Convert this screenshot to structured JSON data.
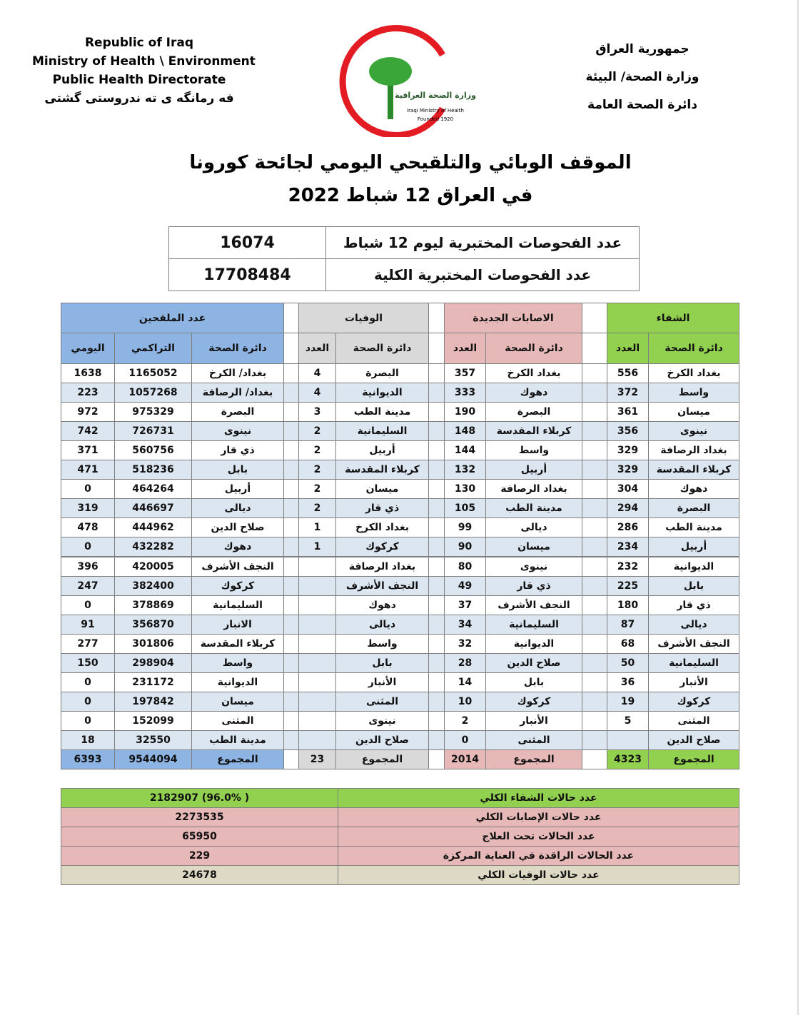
{
  "header": {
    "left": [
      "Republic of Iraq",
      "Ministry of Health \\ Environment",
      "Public Health Directorate",
      "فه رمانگه ی ته ندروستی گشتی"
    ],
    "right": [
      "جمهورية العراق",
      "وزارة الصحة/ البيئة",
      "دائرة الصحة العامة"
    ],
    "logo": [
      "وزارة الصحة العراقية",
      "Iraqi Ministry of Health",
      "Founded 1920"
    ]
  },
  "title": [
    "الموقف الوبائي والتلقيحي اليومي لجائحة كورونا",
    "في العراق  12  شباط 2022"
  ],
  "tests": {
    "rows": [
      [
        "عدد الفحوصات المختبرية  ليوم  12  شباط",
        16074
      ],
      [
        "عدد الفحوصات المختبرية الكلية",
        17708484
      ]
    ]
  },
  "sections": [
    {
      "title": "الشفاء",
      "columns": [
        "دائرة الصحة",
        "العدد"
      ],
      "rows": [
        [
          "بغداد الكرخ",
          556
        ],
        [
          "واسط",
          372
        ],
        [
          "ميسان",
          361
        ],
        [
          "نينوى",
          356
        ],
        [
          "بغداد الرصافة",
          329
        ],
        [
          "كربلاء المقدسة",
          329
        ],
        [
          "دهوك",
          304
        ],
        [
          "البصرة",
          294
        ],
        [
          "مدينة الطب",
          286
        ],
        [
          "أربيل",
          234
        ],
        [
          "الديوانية",
          232
        ],
        [
          "بابل",
          225
        ],
        [
          "ذي قار",
          180
        ],
        [
          "ديالى",
          87
        ],
        [
          "النجف الأشرف",
          68
        ],
        [
          "السليمانية",
          50
        ],
        [
          "الأنبار",
          36
        ],
        [
          "كركوك",
          19
        ],
        [
          "المثنى",
          5
        ],
        [
          "صلاح الدين",
          null
        ]
      ],
      "total": [
        "المجموع",
        4323
      ]
    },
    {
      "title": "الاصابات الجديدة",
      "columns": [
        "دائرة الصحة",
        "العدد"
      ],
      "rows": [
        [
          "بغداد الكرخ",
          357
        ],
        [
          "دهوك",
          333
        ],
        [
          "البصرة",
          190
        ],
        [
          "كربلاء المقدسة",
          148
        ],
        [
          "واسط",
          144
        ],
        [
          "أربيل",
          132
        ],
        [
          "بغداد الرصافة",
          130
        ],
        [
          "مدينة الطب",
          105
        ],
        [
          "ديالى",
          99
        ],
        [
          "ميسان",
          90
        ],
        [
          "نينوى",
          80
        ],
        [
          "ذي قار",
          49
        ],
        [
          "النجف الأشرف",
          37
        ],
        [
          "السليمانية",
          34
        ],
        [
          "الديوانية",
          32
        ],
        [
          "صلاح الدين",
          28
        ],
        [
          "بابل",
          14
        ],
        [
          "كركوك",
          10
        ],
        [
          "الأنبار",
          2
        ],
        [
          "المثنى",
          0
        ]
      ],
      "total": [
        "المجموع",
        2014
      ]
    },
    {
      "title": "الوفيات",
      "columns": [
        "دائرة الصحة",
        "العدد"
      ],
      "rows": [
        [
          "البصرة",
          4
        ],
        [
          "الديوانية",
          4
        ],
        [
          "مدينة الطب",
          3
        ],
        [
          "السليمانية",
          2
        ],
        [
          "أربيل",
          2
        ],
        [
          "كربلاء المقدسة",
          2
        ],
        [
          "ميسان",
          2
        ],
        [
          "ذي قار",
          2
        ],
        [
          "بغداد الكرخ",
          1
        ],
        [
          "كركوك",
          1
        ],
        [
          "بغداد الرصافة",
          null
        ],
        [
          "النجف الأشرف",
          null
        ],
        [
          "دهوك",
          null
        ],
        [
          "ديالى",
          null
        ],
        [
          "واسط",
          null
        ],
        [
          "بابل",
          null
        ],
        [
          "الأنبار",
          null
        ],
        [
          "المثنى",
          null
        ],
        [
          "نينوى",
          null
        ],
        [
          "صلاح الدين",
          null
        ]
      ],
      "total": [
        "المجموع",
        23
      ]
    },
    {
      "title": "عدد الملقحين",
      "columns": [
        "دائرة الصحة",
        "التراكمي",
        "اليومي"
      ],
      "rows": [
        [
          "بغداد/ الكرخ",
          1165052,
          1638
        ],
        [
          "بغداد/ الرصافة",
          1057268,
          223
        ],
        [
          "البصرة",
          975329,
          972
        ],
        [
          "نينوى",
          726731,
          742
        ],
        [
          "ذي قار",
          560756,
          371
        ],
        [
          "بابل",
          518236,
          471
        ],
        [
          "أربيل",
          464264,
          0
        ],
        [
          "ديالى",
          446697,
          319
        ],
        [
          "صلاح الدين",
          444962,
          478
        ],
        [
          "دهوك",
          432282,
          0
        ],
        [
          "النجف الأشرف",
          420005,
          396
        ],
        [
          "كركوك",
          382400,
          247
        ],
        [
          "السليمانية",
          378869,
          0
        ],
        [
          "الانبار",
          356870,
          91
        ],
        [
          "كربلاء المقدسة",
          301806,
          277
        ],
        [
          "واسط",
          298904,
          150
        ],
        [
          "الديوانية",
          231172,
          0
        ],
        [
          "ميسان",
          197842,
          0
        ],
        [
          "المثنى",
          152099,
          0
        ],
        [
          "مدينة الطب",
          32550,
          18
        ]
      ],
      "total": [
        "المجموع",
        9544094,
        6393
      ]
    }
  ],
  "summary": {
    "rows": [
      [
        "عدد حالات الشفاء الكلي",
        "( 96.0%)  2182907"
      ],
      [
        "عدد حالات الإصابات الكلي",
        2273535
      ],
      [
        "عدد الحالات تحت العلاج",
        65950
      ],
      [
        "عدد الحالات الراقدة في العناية المركزة",
        229
      ],
      [
        "عدد حالات الوفيات الكلي",
        24678
      ]
    ]
  }
}
